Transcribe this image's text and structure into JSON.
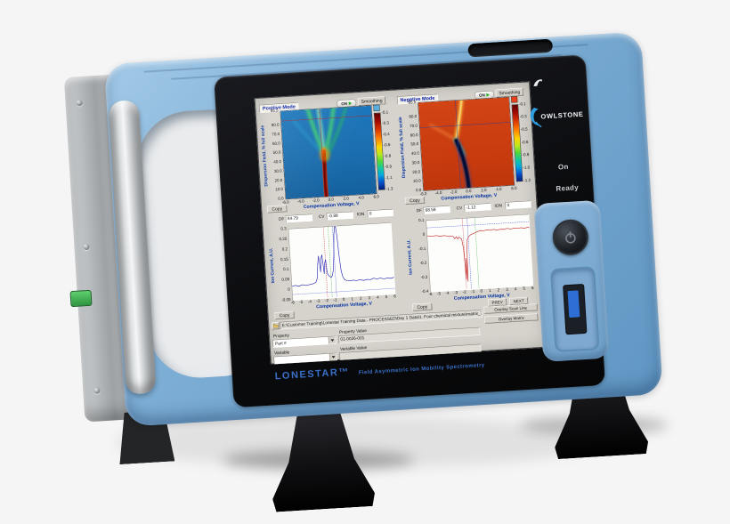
{
  "device": {
    "brand": "OWLSTONE",
    "model": "LONESTAR™",
    "tagline": "Field Asymmetric  Ion Mobility Spectrometry",
    "on_label": "On",
    "ready_label": "Ready",
    "body_color": "#7fafd6",
    "bezel_color": "#0b0c0e"
  },
  "screen": {
    "pos": {
      "toggle_on": "ON",
      "smoothing_btn": "Smoothing",
      "copy_btn": "Copy",
      "df_label": "DF",
      "df_value": "84.79",
      "cv_label": "CV",
      "cv_value": "-0.88",
      "ion_label": "ION",
      "ion_value": "0"
    },
    "neg": {
      "toggle_on": "ON",
      "smoothing_btn": "Smoothing",
      "copy_btn": "Copy",
      "df_label": "DF",
      "df_value": "68.58",
      "cv_label": "CV",
      "cv_value": "-1.12",
      "ion_label": "ION",
      "ion_value": "0"
    },
    "scan": {
      "copy_btn": "Copy",
      "prev_btn": "PREV",
      "next_btn": "NEXT"
    },
    "footer": {
      "file_path": "E:\\Customer Training\\Lonestar Training Data - PROCESSED\\Day 1 Data\\1. Four chemical mixture\\matrix_7.dfm",
      "overlay_scan_btn": "Overlay Scan Line",
      "overlay_matrix_btn": "Overlay Matrix",
      "property_label": "Property",
      "property_dropdown": "Part #",
      "property_value_label": "Property Value",
      "property_value": "01-0026-001",
      "variable_label": "Variable",
      "variable_value_label": "Variable Value"
    }
  },
  "chart_data": [
    {
      "id": "positive_heatmap",
      "type": "heatmap",
      "title": "Positive Mode",
      "xlabel": "Compensation Voltage, V",
      "ylabel": "Dispersion Field, % full scale",
      "xlim": [
        -6,
        6
      ],
      "ylim": [
        0,
        95.5
      ],
      "x_ticks": [
        "-6.0",
        "-4.0",
        "-2.0",
        "0.0",
        "2.0",
        "4.0",
        "6.0"
      ],
      "y_ticks": [
        "95.5",
        "80.0",
        "70.0",
        "60.0",
        "50.0",
        "40.0",
        "30.0",
        "20.0",
        "10.0",
        "0.0"
      ],
      "colorbar_ticks": [
        "-0.1",
        "-0.3",
        "-0.4",
        "-0.6",
        "-0.8",
        "-0.9",
        "-1.1",
        "-1.3"
      ],
      "colorbar_top_swatch": "#5aaede",
      "cursor": {
        "df": 84.79,
        "cv": -0.88
      },
      "cursor_color": "#b42424",
      "description": "Jet-colormap dispersion matrix on blue background; green ion branches converge into a dark red channel near CV 0"
    },
    {
      "id": "negative_heatmap",
      "type": "heatmap",
      "title": "Negative Mode",
      "xlabel": "Compensation Voltage, V",
      "ylabel": "Dispersion Field, % full scale",
      "xlim": [
        -6,
        6
      ],
      "ylim": [
        0,
        95.5
      ],
      "x_ticks": [
        "-6.0",
        "-4.0",
        "-2.0",
        "0.0",
        "2.0",
        "4.0",
        "6.0"
      ],
      "y_ticks": [
        "95.5",
        "80.0",
        "70.0",
        "60.0",
        "50.0",
        "40.0",
        "30.0",
        "20.0",
        "10.0",
        "0.0"
      ],
      "colorbar_ticks": [
        "-0.1",
        "-0.3",
        "-0.5",
        "-0.6",
        "-0.8",
        "-1.0",
        "-1.2"
      ],
      "colorbar_top_swatch": "#e8401a",
      "cursor": {
        "df": 68.58,
        "cv": -1.12
      },
      "cursor_color": "#2b3f9a",
      "description": "Jet-colormap dispersion matrix on orange-red background; yellow branch and dark negative-ion channel curving to CV 0"
    },
    {
      "id": "positive_scan",
      "type": "line",
      "title": "Positive mode scan line",
      "xlabel": "Compensation Voltage, V",
      "ylabel": "Ion Current, A.U.",
      "xlim": [
        -6,
        6
      ],
      "ylim": [
        -0.05,
        0.3
      ],
      "x_ticks": [
        "-6",
        "-5",
        "-4",
        "-3",
        "-2",
        "-1",
        "0",
        "1",
        "2",
        "3",
        "4",
        "5",
        "6"
      ],
      "y_ticks": [
        "0.3",
        "0.25",
        "0.2",
        "0.15",
        "0.1",
        "0.05",
        "0",
        "-0.05"
      ],
      "series": [
        {
          "name": "positive ion current",
          "color": "#2a2ab8",
          "x": [
            -6,
            -5.6,
            -5.2,
            -4.8,
            -4.4,
            -4,
            -3.6,
            -3.2,
            -3,
            -2.85,
            -2.7,
            -2.55,
            -2.45,
            -2.3,
            -2.15,
            -2.05,
            -1.9,
            -1.8,
            -1.65,
            -1.5,
            -1.35,
            -1.2,
            -1.05,
            -0.9,
            -0.75,
            -0.6,
            -0.5,
            -0.4,
            -0.3,
            -0.15,
            0,
            0.2,
            0.5,
            0.8,
            1.2,
            1.6,
            2,
            2.4,
            2.8,
            3.2,
            3.6,
            4,
            4.4,
            4.8,
            5.2,
            5.6,
            6
          ],
          "y": [
            0.018,
            0.022,
            0.017,
            0.023,
            0.019,
            0.021,
            0.024,
            0.03,
            0.05,
            0.12,
            0.16,
            0.08,
            0.14,
            0.165,
            0.07,
            0.12,
            0.14,
            0.075,
            0.06,
            0.055,
            0.05,
            0.06,
            0.09,
            0.16,
            0.26,
            0.3,
            0.295,
            0.25,
            0.16,
            0.08,
            0.05,
            0.035,
            0.03,
            0.028,
            0.03,
            0.027,
            0.031,
            0.026,
            0.03,
            0.028,
            0.034,
            0.029,
            0.033,
            0.027,
            0.031,
            0.028,
            0.032
          ]
        }
      ],
      "cursors": [
        {
          "x": -1.92,
          "color": "#cc2222"
        },
        {
          "x": -1.38,
          "color": "#22aa22"
        },
        {
          "x": -0.85,
          "color": "#2233cc"
        }
      ],
      "hline": {
        "y": -0.022,
        "color": "#2233cc"
      }
    },
    {
      "id": "negative_scan",
      "type": "line",
      "title": "Negative mode scan line",
      "xlabel": "Compensation Voltage, V",
      "ylabel": "Ion Current, A.U.",
      "xlim": [
        -6,
        6
      ],
      "ylim": [
        -0.4,
        0.1
      ],
      "x_ticks": [
        "-6",
        "-5",
        "-4",
        "-3",
        "-2",
        "-1",
        "0",
        "1",
        "2",
        "3",
        "4",
        "5",
        "6"
      ],
      "y_ticks": [
        "0.1",
        "0",
        "-0.1",
        "-0.2",
        "-0.3",
        "-0.4"
      ],
      "series": [
        {
          "name": "negative ion current",
          "color": "#c03030",
          "x": [
            -6,
            -5.5,
            -5,
            -4.5,
            -4,
            -3.5,
            -3,
            -2.8,
            -2.6,
            -2.45,
            -2.3,
            -2.15,
            -2,
            -1.85,
            -1.72,
            -1.62,
            -1.55,
            -1.45,
            -1.35,
            -1.2,
            -1.05,
            -0.9,
            -0.7,
            -0.5,
            -0.25,
            0,
            0.3,
            0.6,
            1,
            1.4,
            1.8,
            2.2,
            2.6,
            3,
            3.4,
            3.8,
            4.2,
            4.6,
            5,
            5.4,
            5.8,
            6
          ],
          "y": [
            -0.006,
            -0.012,
            -0.008,
            -0.014,
            -0.012,
            -0.018,
            -0.02,
            -0.038,
            -0.025,
            -0.042,
            -0.028,
            -0.035,
            -0.045,
            -0.11,
            -0.33,
            -0.18,
            -0.345,
            -0.12,
            -0.05,
            -0.032,
            -0.022,
            -0.016,
            -0.012,
            -0.008,
            -0.002,
            0.004,
            0.008,
            0.005,
            0.01,
            0.006,
            0.011,
            0.005,
            0.009,
            0.007,
            0.012,
            0.006,
            0.01,
            0.007,
            0.011,
            0.006,
            0.01,
            0.008
          ]
        }
      ],
      "cursors": [
        {
          "x": -1.78,
          "color": "#cc2222"
        },
        {
          "x": -1.22,
          "color": "#2233cc"
        },
        {
          "x": -0.32,
          "color": "#22aa22"
        }
      ],
      "hline": {
        "y": 0.05,
        "color": "#2233cc"
      }
    }
  ]
}
